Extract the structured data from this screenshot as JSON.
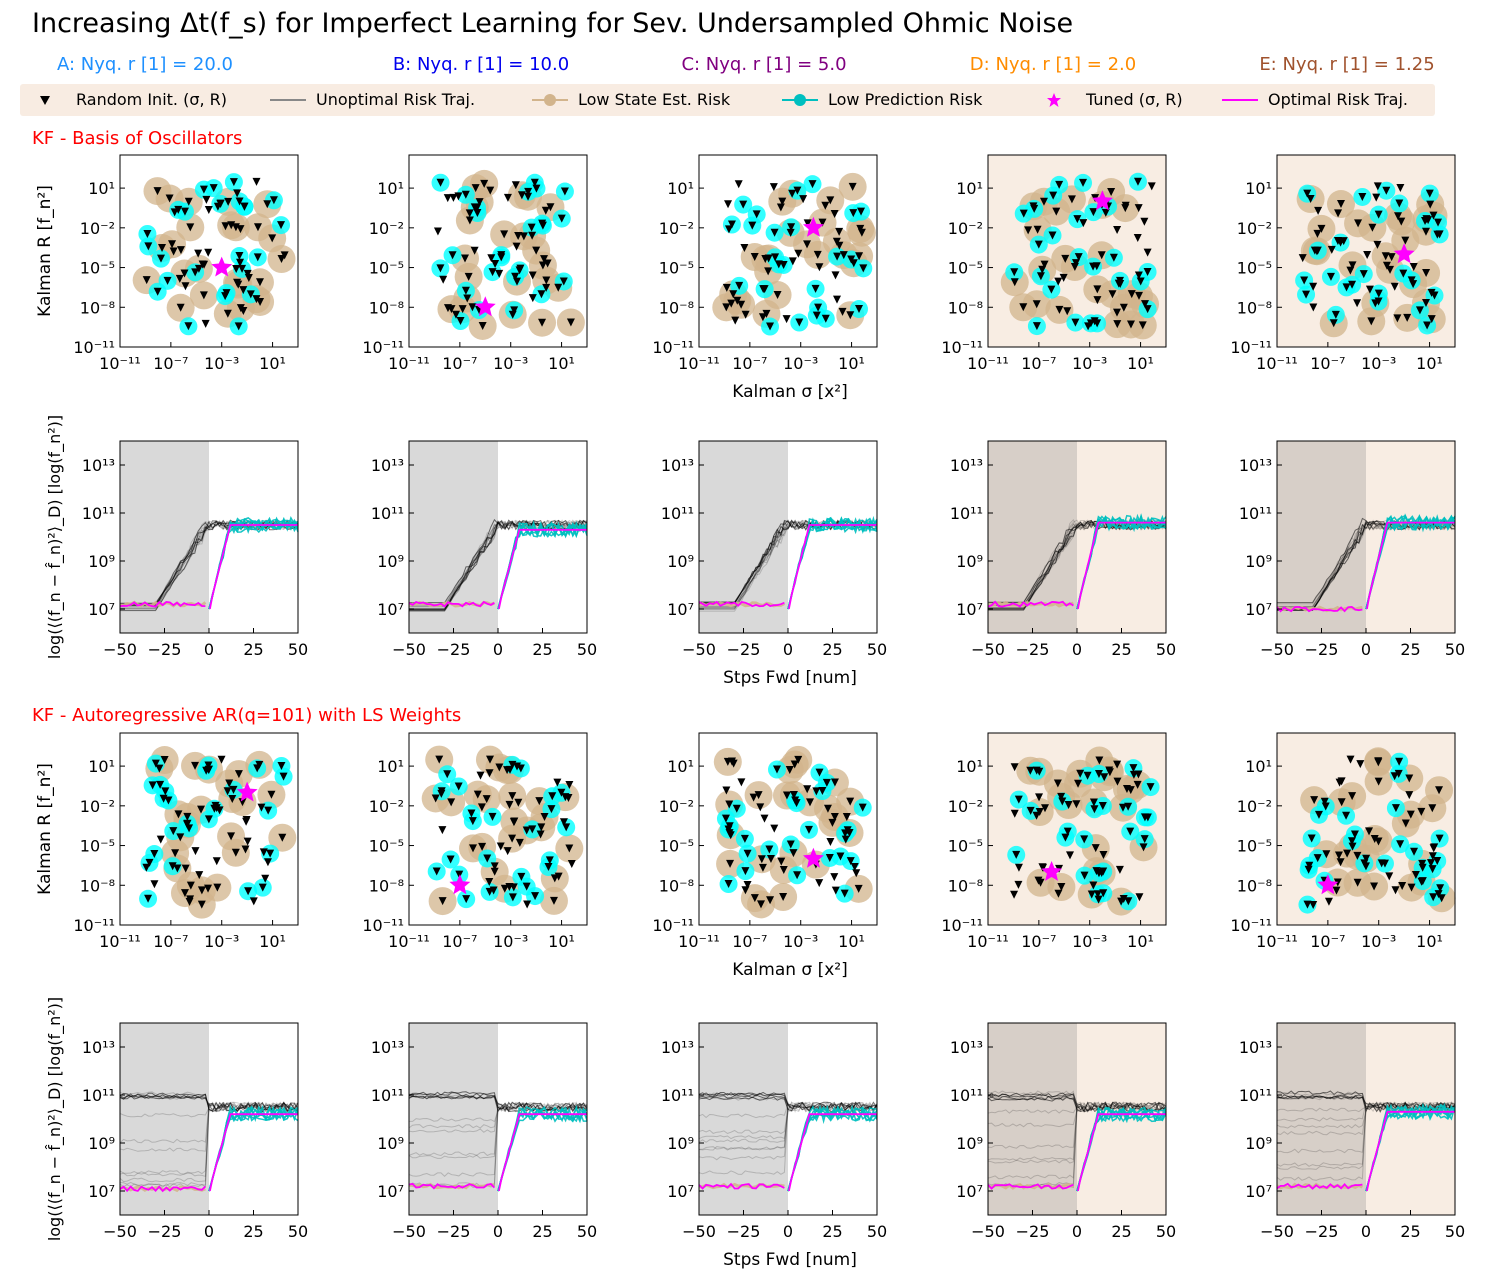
{
  "title": "Increasing Δt(f_s) for Imperfect Learning for Sev. Undersampled  Ohmic Noise",
  "columns": [
    {
      "label": "A: Nyq. r [1] = 20.0",
      "color": "#1e90ff"
    },
    {
      "label": "B: Nyq. r [1] = 10.0",
      "color": "#0000ee"
    },
    {
      "label": "C: Nyq. r [1] = 5.0",
      "color": "#800080"
    },
    {
      "label": "D: Nyq. r [1] = 2.0",
      "color": "#ff8c00"
    },
    {
      "label": "E: Nyq. r [1] = 1.25",
      "color": "#a0522d"
    }
  ],
  "legend": [
    {
      "label": "Random Init. (σ, R)",
      "icon": "black-triangle-down"
    },
    {
      "label": "Unoptimal Risk Traj.",
      "icon": "grey-line"
    },
    {
      "label": "Low State Est. Risk",
      "icon": "tan-circle-line"
    },
    {
      "label": "Low Prediction Risk",
      "icon": "cyan-circle-line"
    },
    {
      "label": "Tuned (σ, R)",
      "icon": "magenta-star"
    },
    {
      "label": "Optimal Risk Traj.",
      "icon": "magenta-line"
    }
  ],
  "sections": [
    {
      "title": "KF - Basis of Oscillators"
    },
    {
      "title": "KF - Autoregressive AR(q=101) with LS Weights"
    }
  ],
  "colors": {
    "random_init": "#000000",
    "unoptimal": "#888888",
    "low_state": "#d2b48c",
    "low_pred": "#00ffff",
    "low_pred_line": "#00bfbf",
    "tuned": "#ff00ff",
    "optimal": "#ff00ff",
    "section_title": "#ff0000",
    "legend_bg": "#f8ece2",
    "panel_bg_highlight": "#f8ede3",
    "shade": "#d9d9d9",
    "shade_highlight": "#d7cfc8"
  },
  "scatter_axes": {
    "xlabel": "Kalman σ [x²]",
    "ylabel": "Kalman R [f_n²]",
    "xticks": [
      "10⁻¹¹",
      "10⁻⁷",
      "10⁻³",
      "10¹"
    ],
    "xtick_values": [
      -11,
      -7,
      -3,
      1
    ],
    "yticks": [
      "10⁻¹¹",
      "10⁻⁸",
      "10⁻⁵",
      "10⁻²",
      "10¹"
    ],
    "ytick_values": [
      -11,
      -8,
      -5,
      -2,
      1
    ],
    "xlim_log10": [
      -11,
      3
    ],
    "ylim_log10": [
      -11,
      3.5
    ]
  },
  "traj_axes": {
    "xlabel": "Stps Fwd [num]",
    "ylabel": "log(⟨(f_n − f̂_n)²⟩_D) [log(f_n²)]",
    "xticks": [
      "−50",
      "−25",
      "0",
      "25",
      "50"
    ],
    "xtick_values": [
      -50,
      -25,
      0,
      25,
      50
    ],
    "yticks": [
      "10⁷",
      "10⁹",
      "10¹¹",
      "10¹³"
    ],
    "ytick_values": [
      7,
      9,
      11,
      13
    ],
    "xlim": [
      -50,
      50
    ],
    "ylim_log10": [
      6,
      14
    ]
  },
  "chart_data": [
    {
      "type": "scatter",
      "title": "KF - Basis of Oscillators",
      "xlabel": "Kalman σ [x²]",
      "ylabel": "Kalman R [f_n²]",
      "log_scale": {
        "x": true,
        "y": true
      },
      "panels": [
        {
          "column": "A",
          "tuned": {
            "sigma": 0.001,
            "R": 1e-05
          }
        },
        {
          "column": "B",
          "tuned": {
            "sigma": 1e-05,
            "R": 1e-08
          }
        },
        {
          "column": "C",
          "tuned": {
            "sigma": 0.01,
            "R": 0.01
          }
        },
        {
          "column": "D",
          "tuned": {
            "sigma": 0.01,
            "R": 1.0
          }
        },
        {
          "column": "E",
          "tuned": {
            "sigma": 0.1,
            "R": 0.0001
          }
        }
      ]
    },
    {
      "type": "line",
      "title": "KF - Basis of Oscillators",
      "xlabel": "Stps Fwd [num]",
      "ylabel": "log(⟨(f_n − f̂_n)²⟩_D) [log(f_n²)]",
      "xlim": [
        -50,
        50
      ],
      "log_scale": {
        "y": true
      },
      "panels": [
        {
          "column": "A",
          "optimal_level_before": 7.2,
          "optimal_level_after": 10.5
        },
        {
          "column": "B",
          "optimal_level_before": 7.2,
          "optimal_level_after": 10.3
        },
        {
          "column": "C",
          "optimal_level_before": 7.2,
          "optimal_level_after": 10.5
        },
        {
          "column": "D",
          "optimal_level_before": 7.2,
          "optimal_level_after": 10.6
        },
        {
          "column": "E",
          "optimal_level_before": 7.0,
          "optimal_level_after": 10.6
        }
      ]
    },
    {
      "type": "scatter",
      "title": "KF - Autoregressive AR(q=101) with LS Weights",
      "xlabel": "Kalman σ [x²]",
      "ylabel": "Kalman R [f_n²]",
      "log_scale": {
        "x": true,
        "y": true
      },
      "panels": [
        {
          "column": "A",
          "tuned": {
            "sigma": 0.1,
            "R": 0.1
          }
        },
        {
          "column": "B",
          "tuned": {
            "sigma": 1e-07,
            "R": 1e-08
          }
        },
        {
          "column": "C",
          "tuned": {
            "sigma": 0.01,
            "R": 1e-06
          }
        },
        {
          "column": "D",
          "tuned": {
            "sigma": 1e-06,
            "R": 1e-07
          }
        },
        {
          "column": "E",
          "tuned": {
            "sigma": 1e-07,
            "R": 1e-08
          }
        }
      ]
    },
    {
      "type": "line",
      "title": "KF - Autoregressive AR(q=101) with LS Weights",
      "xlabel": "Stps Fwd [num]",
      "ylabel": "log(⟨(f_n − f̂_n)²⟩_D) [log(f_n²)]",
      "xlim": [
        -50,
        50
      ],
      "log_scale": {
        "y": true
      },
      "panels": [
        {
          "column": "A",
          "optimal_level_before": 7.1,
          "optimal_level_after": 10.2
        },
        {
          "column": "B",
          "optimal_level_before": 7.2,
          "optimal_level_after": 10.2
        },
        {
          "column": "C",
          "optimal_level_before": 7.2,
          "optimal_level_after": 10.2
        },
        {
          "column": "D",
          "optimal_level_before": 7.2,
          "optimal_level_after": 10.2
        },
        {
          "column": "E",
          "optimal_level_before": 7.2,
          "optimal_level_after": 10.3
        }
      ]
    }
  ]
}
